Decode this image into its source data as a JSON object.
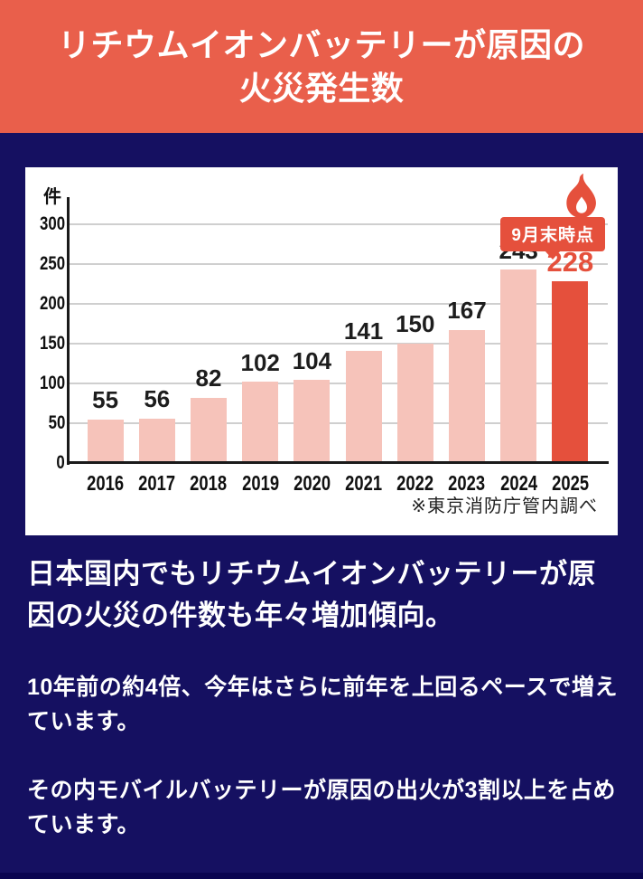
{
  "header": {
    "title_line1": "リチウムイオンバッテリーが原因の",
    "title_line2": "火災発生数"
  },
  "chart_data": {
    "type": "bar",
    "title": "リチウムイオンバッテリーが原因の火災発生数",
    "unit_label": "件",
    "categories": [
      "2016",
      "2017",
      "2018",
      "2019",
      "2020",
      "2021",
      "2022",
      "2023",
      "2024",
      "2025"
    ],
    "values": [
      55,
      56,
      82,
      102,
      104,
      141,
      150,
      167,
      243,
      228
    ],
    "highlight_index": 9,
    "annotation": "9月末時点",
    "note": "※東京消防庁管内調べ",
    "ylim": [
      0,
      300
    ],
    "yticks": [
      0,
      50,
      100,
      150,
      200,
      250,
      300
    ],
    "grid": true,
    "legend": "none",
    "bar_color": "#F6C3BA",
    "highlight_color": "#E5503C"
  },
  "body": {
    "lead": "日本国内でもリチウムイオンバッテリーが原因の火災の件数も年々増加傾向。",
    "para1": "10年前の約4倍、今年はさらに前年を上回るペースで増えています。",
    "para2": "その内モバイルバッテリーが原因の出火が3割以上を占めています。"
  },
  "colors": {
    "header_bg": "#E95F4B",
    "navy_bg": "#151061",
    "accent": "#E5503C",
    "bar_pink": "#F6C3BA",
    "card_bg": "#FFFFFF"
  }
}
